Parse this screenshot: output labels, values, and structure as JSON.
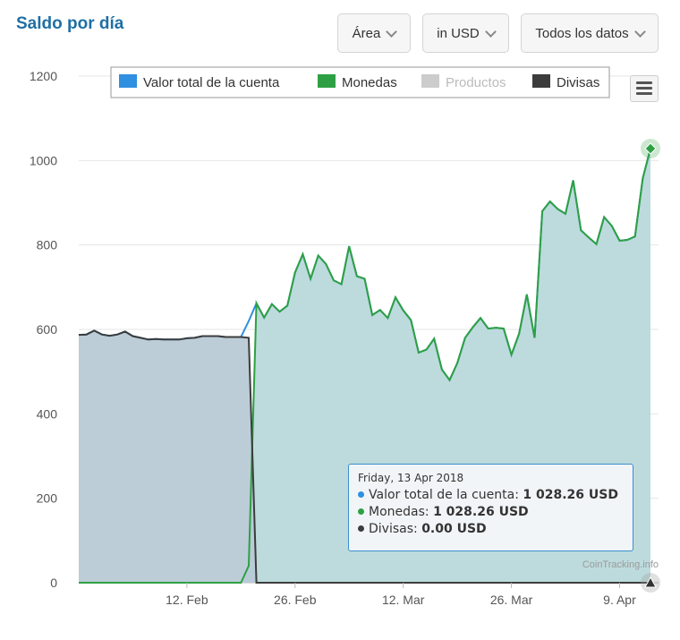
{
  "header": {
    "title": "Saldo por día"
  },
  "controls": {
    "chart_type": "Área",
    "currency": "in USD",
    "range": "Todos los datos"
  },
  "credit": "CoinTracking.info",
  "tooltip": {
    "date": "Friday, 13 Apr 2018",
    "rows": [
      {
        "label": "Valor total de la cuenta",
        "value": "1 028.26 USD",
        "color": "#2f8fe0"
      },
      {
        "label": "Monedas",
        "value": "1 028.26 USD",
        "color": "#2ea043"
      },
      {
        "label": "Divisas",
        "value": "0.00 USD",
        "color": "#3c3c3c"
      }
    ]
  },
  "chart_data": {
    "type": "area",
    "title": "",
    "xlabel": "",
    "ylabel": "",
    "ylim": [
      0,
      1200
    ],
    "yticks": [
      0,
      200,
      400,
      600,
      800,
      1000,
      1200
    ],
    "xticks": [
      {
        "label": "12. Feb",
        "date": "2018-02-12"
      },
      {
        "label": "26. Feb",
        "date": "2018-02-26"
      },
      {
        "label": "12. Mar",
        "date": "2018-03-12"
      },
      {
        "label": "26. Mar",
        "date": "2018-03-26"
      },
      {
        "label": "9. Apr",
        "date": "2018-04-09"
      }
    ],
    "xlim": [
      "2018-01-29",
      "2018-04-13"
    ],
    "grid": true,
    "legend_position": "top",
    "legend": [
      {
        "name": "Valor total de la cuenta",
        "color": "#2f8fe0",
        "visible": true
      },
      {
        "name": "Monedas",
        "color": "#2ea043",
        "visible": true
      },
      {
        "name": "Productos",
        "color": "#cccccc",
        "visible": false
      },
      {
        "name": "Divisas",
        "color": "#3c3c3c",
        "visible": true
      }
    ],
    "series": [
      {
        "name": "Valor total de la cuenta",
        "color": "#2f8fe0",
        "points": [
          [
            "2018-01-29",
            587
          ],
          [
            "2018-01-30",
            588
          ],
          [
            "2018-01-31",
            597
          ],
          [
            "2018-02-01",
            588
          ],
          [
            "2018-02-02",
            585
          ],
          [
            "2018-02-03",
            588
          ],
          [
            "2018-02-04",
            595
          ],
          [
            "2018-02-05",
            584
          ],
          [
            "2018-02-06",
            580
          ],
          [
            "2018-02-07",
            576
          ],
          [
            "2018-02-08",
            577
          ],
          [
            "2018-02-09",
            576
          ],
          [
            "2018-02-10",
            576
          ],
          [
            "2018-02-11",
            576
          ],
          [
            "2018-02-12",
            579
          ],
          [
            "2018-02-13",
            580
          ],
          [
            "2018-02-14",
            584
          ],
          [
            "2018-02-15",
            584
          ],
          [
            "2018-02-16",
            584
          ],
          [
            "2018-02-17",
            582
          ],
          [
            "2018-02-18",
            582
          ],
          [
            "2018-02-19",
            582
          ],
          [
            "2018-02-20",
            620
          ],
          [
            "2018-02-21",
            662
          ],
          [
            "2018-02-22",
            628
          ],
          [
            "2018-02-23",
            660
          ],
          [
            "2018-02-24",
            642
          ],
          [
            "2018-02-25",
            656
          ],
          [
            "2018-02-26",
            735
          ],
          [
            "2018-02-27",
            778
          ],
          [
            "2018-02-28",
            720
          ],
          [
            "2018-03-01",
            775
          ],
          [
            "2018-03-02",
            755
          ],
          [
            "2018-03-03",
            716
          ],
          [
            "2018-03-04",
            707
          ],
          [
            "2018-03-05",
            797
          ],
          [
            "2018-03-06",
            726
          ],
          [
            "2018-03-07",
            720
          ],
          [
            "2018-03-08",
            634
          ],
          [
            "2018-03-09",
            646
          ],
          [
            "2018-03-10",
            627
          ],
          [
            "2018-03-11",
            676
          ],
          [
            "2018-03-12",
            645
          ],
          [
            "2018-03-13",
            622
          ],
          [
            "2018-03-14",
            545
          ],
          [
            "2018-03-15",
            552
          ],
          [
            "2018-03-16",
            578
          ],
          [
            "2018-03-17",
            505
          ],
          [
            "2018-03-18",
            480
          ],
          [
            "2018-03-19",
            520
          ],
          [
            "2018-03-20",
            580
          ],
          [
            "2018-03-21",
            605
          ],
          [
            "2018-03-22",
            627
          ],
          [
            "2018-03-23",
            602
          ],
          [
            "2018-03-24",
            604
          ],
          [
            "2018-03-25",
            602
          ],
          [
            "2018-03-26",
            540
          ],
          [
            "2018-03-27",
            590
          ],
          [
            "2018-03-28",
            683
          ],
          [
            "2018-03-29",
            580
          ],
          [
            "2018-03-30",
            880
          ],
          [
            "2018-03-31",
            903
          ],
          [
            "2018-04-01",
            885
          ],
          [
            "2018-04-02",
            874
          ],
          [
            "2018-04-03",
            953
          ],
          [
            "2018-04-04",
            835
          ],
          [
            "2018-04-05",
            818
          ],
          [
            "2018-04-06",
            802
          ],
          [
            "2018-04-07",
            866
          ],
          [
            "2018-04-08",
            845
          ],
          [
            "2018-04-09",
            810
          ],
          [
            "2018-04-10",
            812
          ],
          [
            "2018-04-11",
            820
          ],
          [
            "2018-04-12",
            958
          ],
          [
            "2018-04-13",
            1028.26
          ]
        ]
      },
      {
        "name": "Monedas",
        "color": "#2ea043",
        "points": [
          [
            "2018-01-29",
            0
          ],
          [
            "2018-02-19",
            0
          ],
          [
            "2018-02-20",
            40
          ],
          [
            "2018-02-21",
            662
          ],
          [
            "2018-02-22",
            628
          ],
          [
            "2018-02-23",
            660
          ],
          [
            "2018-02-24",
            642
          ],
          [
            "2018-02-25",
            656
          ],
          [
            "2018-02-26",
            735
          ],
          [
            "2018-02-27",
            778
          ],
          [
            "2018-02-28",
            720
          ],
          [
            "2018-03-01",
            775
          ],
          [
            "2018-03-02",
            755
          ],
          [
            "2018-03-03",
            716
          ],
          [
            "2018-03-04",
            707
          ],
          [
            "2018-03-05",
            797
          ],
          [
            "2018-03-06",
            726
          ],
          [
            "2018-03-07",
            720
          ],
          [
            "2018-03-08",
            634
          ],
          [
            "2018-03-09",
            646
          ],
          [
            "2018-03-10",
            627
          ],
          [
            "2018-03-11",
            676
          ],
          [
            "2018-03-12",
            645
          ],
          [
            "2018-03-13",
            622
          ],
          [
            "2018-03-14",
            545
          ],
          [
            "2018-03-15",
            552
          ],
          [
            "2018-03-16",
            578
          ],
          [
            "2018-03-17",
            505
          ],
          [
            "2018-03-18",
            480
          ],
          [
            "2018-03-19",
            520
          ],
          [
            "2018-03-20",
            580
          ],
          [
            "2018-03-21",
            605
          ],
          [
            "2018-03-22",
            627
          ],
          [
            "2018-03-23",
            602
          ],
          [
            "2018-03-24",
            604
          ],
          [
            "2018-03-25",
            602
          ],
          [
            "2018-03-26",
            540
          ],
          [
            "2018-03-27",
            590
          ],
          [
            "2018-03-28",
            683
          ],
          [
            "2018-03-29",
            580
          ],
          [
            "2018-03-30",
            880
          ],
          [
            "2018-03-31",
            903
          ],
          [
            "2018-04-01",
            885
          ],
          [
            "2018-04-02",
            874
          ],
          [
            "2018-04-03",
            953
          ],
          [
            "2018-04-04",
            835
          ],
          [
            "2018-04-05",
            818
          ],
          [
            "2018-04-06",
            802
          ],
          [
            "2018-04-07",
            866
          ],
          [
            "2018-04-08",
            845
          ],
          [
            "2018-04-09",
            810
          ],
          [
            "2018-04-10",
            812
          ],
          [
            "2018-04-11",
            820
          ],
          [
            "2018-04-12",
            958
          ],
          [
            "2018-04-13",
            1028.26
          ]
        ]
      },
      {
        "name": "Divisas",
        "color": "#3c3c3c",
        "points": [
          [
            "2018-01-29",
            587
          ],
          [
            "2018-01-30",
            588
          ],
          [
            "2018-01-31",
            597
          ],
          [
            "2018-02-01",
            588
          ],
          [
            "2018-02-02",
            585
          ],
          [
            "2018-02-03",
            588
          ],
          [
            "2018-02-04",
            595
          ],
          [
            "2018-02-05",
            584
          ],
          [
            "2018-02-06",
            580
          ],
          [
            "2018-02-07",
            576
          ],
          [
            "2018-02-08",
            577
          ],
          [
            "2018-02-09",
            576
          ],
          [
            "2018-02-10",
            576
          ],
          [
            "2018-02-11",
            576
          ],
          [
            "2018-02-12",
            579
          ],
          [
            "2018-02-13",
            580
          ],
          [
            "2018-02-14",
            584
          ],
          [
            "2018-02-15",
            584
          ],
          [
            "2018-02-16",
            584
          ],
          [
            "2018-02-17",
            582
          ],
          [
            "2018-02-18",
            582
          ],
          [
            "2018-02-19",
            582
          ],
          [
            "2018-02-20",
            580
          ],
          [
            "2018-02-21",
            0
          ],
          [
            "2018-04-13",
            0
          ]
        ]
      }
    ]
  }
}
